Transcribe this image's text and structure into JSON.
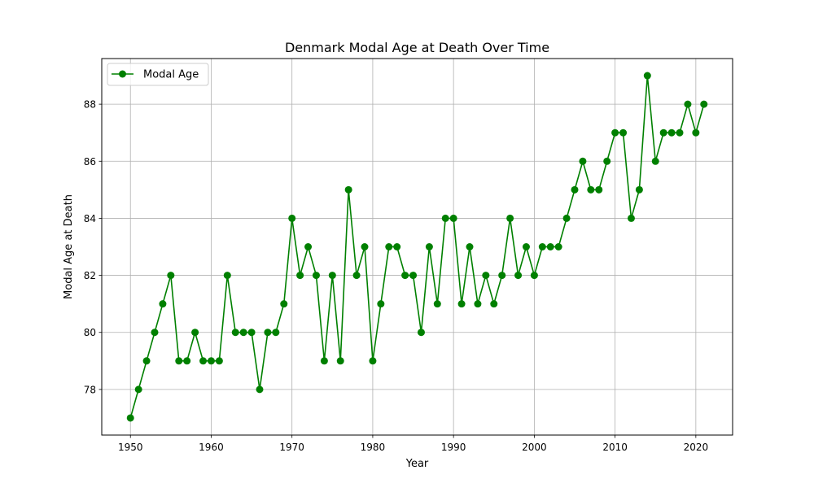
{
  "chart_data": {
    "type": "line",
    "title": "Denmark Modal Age at Death Over Time",
    "xlabel": "Year",
    "ylabel": "Modal Age at Death",
    "xlim": [
      1946.45,
      2024.55
    ],
    "ylim": [
      76.4,
      89.6
    ],
    "x_ticks": [
      1950,
      1960,
      1970,
      1980,
      1990,
      2000,
      2010,
      2020
    ],
    "y_ticks": [
      78,
      80,
      82,
      84,
      86,
      88
    ],
    "grid": true,
    "legend_position": "top-left",
    "series": [
      {
        "name": "Modal Age",
        "color": "#008000",
        "marker": "circle",
        "x": [
          1950,
          1951,
          1952,
          1953,
          1954,
          1955,
          1956,
          1957,
          1958,
          1959,
          1960,
          1961,
          1962,
          1963,
          1964,
          1965,
          1966,
          1967,
          1968,
          1969,
          1970,
          1971,
          1972,
          1973,
          1974,
          1975,
          1976,
          1977,
          1978,
          1979,
          1980,
          1981,
          1982,
          1983,
          1984,
          1985,
          1986,
          1987,
          1988,
          1989,
          1990,
          1991,
          1992,
          1993,
          1994,
          1995,
          1996,
          1997,
          1998,
          1999,
          2000,
          2001,
          2002,
          2003,
          2004,
          2005,
          2006,
          2007,
          2008,
          2009,
          2010,
          2011,
          2012,
          2013,
          2014,
          2015,
          2016,
          2017,
          2018,
          2019,
          2020,
          2021
        ],
        "y": [
          77,
          78,
          79,
          80,
          81,
          82,
          79,
          79,
          80,
          79,
          79,
          79,
          82,
          80,
          80,
          80,
          78,
          80,
          80,
          81,
          84,
          82,
          83,
          82,
          79,
          82,
          79,
          85,
          82,
          83,
          79,
          81,
          83,
          83,
          82,
          82,
          80,
          83,
          81,
          84,
          84,
          81,
          83,
          81,
          82,
          81,
          82,
          84,
          82,
          83,
          82,
          83,
          83,
          83,
          84,
          85,
          86,
          85,
          85,
          86,
          87,
          87,
          84,
          85,
          89,
          86,
          87,
          87,
          87,
          88,
          87,
          88
        ]
      }
    ]
  }
}
